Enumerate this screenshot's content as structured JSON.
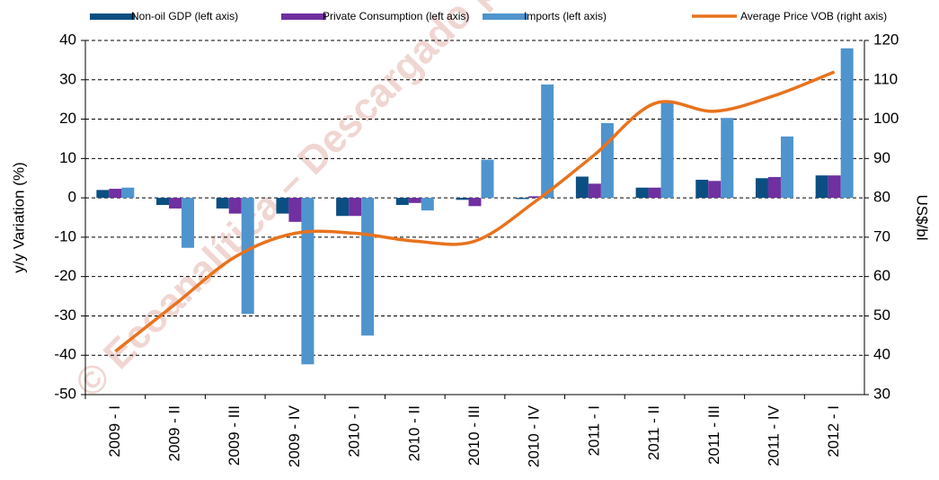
{
  "chart_data": {
    "type": "bar_line",
    "watermark": "© Ecoanalítica – Descargado po",
    "y_label": "y/y Variation (%)",
    "y2_label": "US$/bl",
    "categories": [
      "2009 - I",
      "2009 - II",
      "2009 - III",
      "2009 - IV",
      "2010 - I",
      "2010 - II",
      "2010 - III",
      "2010 - IV",
      "2011 - I",
      "2011 - II",
      "2011 - III",
      "2011 - IV",
      "2012 - I"
    ],
    "series": [
      {
        "name": "Non-oil GDP (left axis)",
        "type": "bar",
        "color": "#0b4f82",
        "values": [
          2.0,
          -1.8,
          -2.7,
          -4.0,
          -4.6,
          -1.8,
          -0.5,
          -0.3,
          5.4,
          2.6,
          4.6,
          5.0,
          5.7
        ]
      },
      {
        "name": "Private Consumption (left axis)",
        "type": "bar",
        "color": "#7030a0",
        "values": [
          2.3,
          -2.7,
          -4.0,
          -6.1,
          -4.6,
          -1.3,
          -2.1,
          0.4,
          3.6,
          2.6,
          4.3,
          5.3,
          5.7
        ]
      },
      {
        "name": "Imports (left axis)",
        "type": "bar",
        "color": "#4f94cd",
        "values": [
          2.6,
          -12.7,
          -29.5,
          -42.3,
          -35.0,
          -3.2,
          9.7,
          28.8,
          19.0,
          24.3,
          20.3,
          15.6,
          38.0
        ]
      },
      {
        "name": "Average Price VOB (right axis)",
        "type": "line",
        "axis": "y2",
        "color": "#e8731e",
        "values": [
          41,
          53,
          65,
          71,
          71,
          69,
          69,
          79,
          91,
          104,
          102,
          106,
          112
        ]
      }
    ],
    "ylim": [
      -50,
      40
    ],
    "yticks": [
      -50,
      -40,
      -30,
      -20,
      -10,
      0,
      10,
      20,
      30,
      40
    ],
    "y2lim": [
      30,
      120
    ],
    "y2ticks": [
      30,
      40,
      50,
      60,
      70,
      80,
      90,
      100,
      110,
      120
    ],
    "grid": true
  }
}
